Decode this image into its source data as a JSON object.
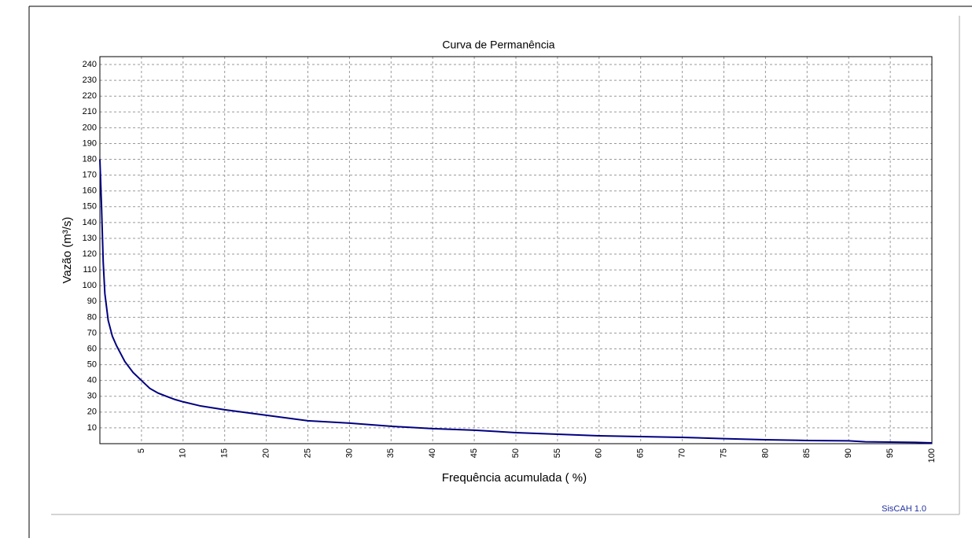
{
  "chart_data": {
    "type": "line",
    "title": "Curva de Permanência",
    "x_label": "Frequência acumulada ( %)",
    "y_label": "Vazão (m³/s)",
    "annotation": "SisCAH 1.0",
    "x": [
      0,
      0.2,
      0.4,
      0.6,
      1,
      1.5,
      2,
      3,
      4,
      5,
      6,
      7,
      8,
      9,
      10,
      12,
      15,
      20,
      25,
      30,
      35,
      40,
      45,
      50,
      55,
      60,
      65,
      70,
      75,
      80,
      85,
      90,
      92,
      95,
      98,
      100
    ],
    "series": [
      {
        "name": "Vazão",
        "color": "#000080",
        "values": [
          180,
          150,
          115,
          95,
          78,
          68,
          62,
          52,
          45,
          40,
          35,
          32,
          30,
          28,
          26.5,
          24,
          21.5,
          18,
          14.5,
          13,
          11,
          9.5,
          8.5,
          7,
          6,
          5,
          4.5,
          4,
          3.2,
          2.5,
          2,
          1.8,
          1.2,
          1,
          0.8,
          0.5
        ]
      }
    ],
    "xlim": [
      0,
      100
    ],
    "xticks": [
      5,
      10,
      15,
      20,
      25,
      30,
      35,
      40,
      45,
      50,
      55,
      60,
      65,
      70,
      75,
      80,
      85,
      90,
      95,
      100
    ],
    "ylim": [
      0,
      245
    ],
    "yticks": [
      10,
      20,
      30,
      40,
      50,
      60,
      70,
      80,
      90,
      100,
      110,
      120,
      130,
      140,
      150,
      160,
      170,
      180,
      190,
      200,
      210,
      220,
      230,
      240
    ],
    "grid": true
  }
}
